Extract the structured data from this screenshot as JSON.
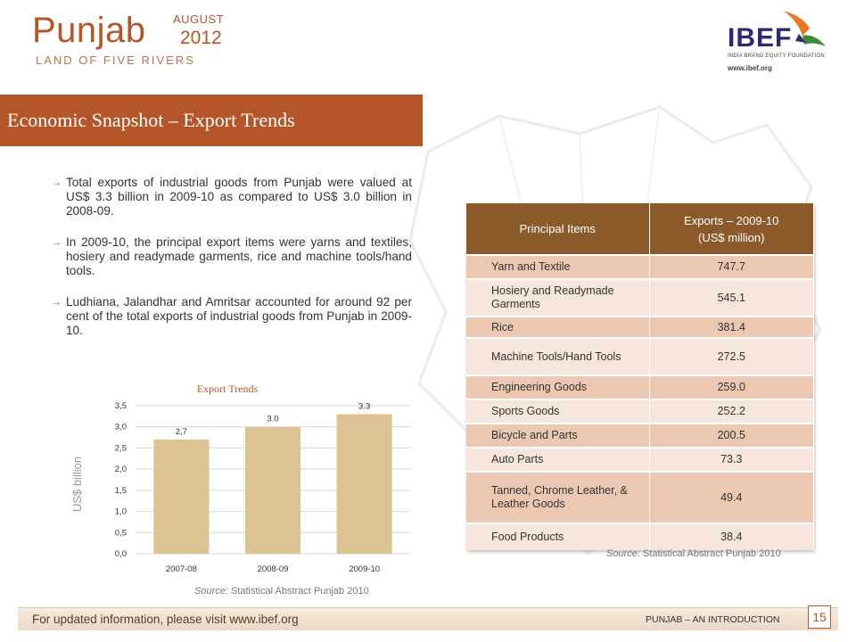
{
  "header": {
    "title": "Punjab",
    "month": "AUGUST",
    "year": "2012",
    "subtitle": "LAND OF FIVE RIVERS",
    "logo_text": "IBEF",
    "logo_subtitle": "INDIA BRAND EQUITY FOUNDATION",
    "logo_url": "www.ibef.org"
  },
  "banner": {
    "title": "Economic Snapshot – Export Trends"
  },
  "bullets": [
    "Total exports of industrial goods from Punjab were valued at US$ 3.3 billion in 2009-10 as compared to US$ 3.0 billion in 2008-09.",
    "In 2009-10, the principal export items were yarns and textiles, hosiery and readymade garments, rice and machine tools/hand tools.",
    "Ludhiana, Jalandhar and Amritsar accounted for around 92 per cent of the total exports of industrial goods from Punjab in 2009-10."
  ],
  "chart_data": {
    "type": "bar",
    "title": "Export Trends",
    "ylabel": "US$ billion",
    "categories": [
      "2007-08",
      "2008-09",
      "2009-10"
    ],
    "values": [
      2.7,
      3.0,
      3.3
    ],
    "data_labels": [
      "2,7",
      "3.0",
      "3.3"
    ],
    "y_ticks": [
      "0,0",
      "0,5",
      "1,0",
      "1,5",
      "2,0",
      "2,5",
      "3,0",
      "3,5"
    ],
    "ylim": [
      0,
      3.5
    ],
    "grid": true,
    "bar_color": "#dcc393"
  },
  "chart_source": {
    "label": "Source:",
    "text": "Statistical Abstract Punjab 2010"
  },
  "table": {
    "headers": [
      "Principal Items",
      "Exports – 2009-10",
      "(US$ million)"
    ],
    "rows": [
      {
        "item": "Yarn and Textile",
        "value": "747.7"
      },
      {
        "item": "Hosiery and Readymade Garments",
        "value": "545.1"
      },
      {
        "item": "Rice",
        "value": "381.4"
      },
      {
        "item": "Machine Tools/Hand Tools",
        "value": "272.5"
      },
      {
        "item": "Engineering Goods",
        "value": "259.0"
      },
      {
        "item": "Sports Goods",
        "value": "252.2"
      },
      {
        "item": "Bicycle and Parts",
        "value": "200.5"
      },
      {
        "item": "Auto Parts",
        "value": "73.3"
      },
      {
        "item": "Tanned, Chrome Leather, & Leather Goods",
        "value": "49.4"
      },
      {
        "item": "Food Products",
        "value": "38.4"
      }
    ]
  },
  "table_source": {
    "label": "Source:",
    "text": "Statistical Abstract Punjab 2010"
  },
  "footer": {
    "text": "For updated information, please visit www.ibef.org",
    "right": "PUNJAB – AN INTRODUCTION",
    "page": "15"
  },
  "colors": {
    "accent": "#b5552a",
    "table_header": "#8b5a2b"
  }
}
